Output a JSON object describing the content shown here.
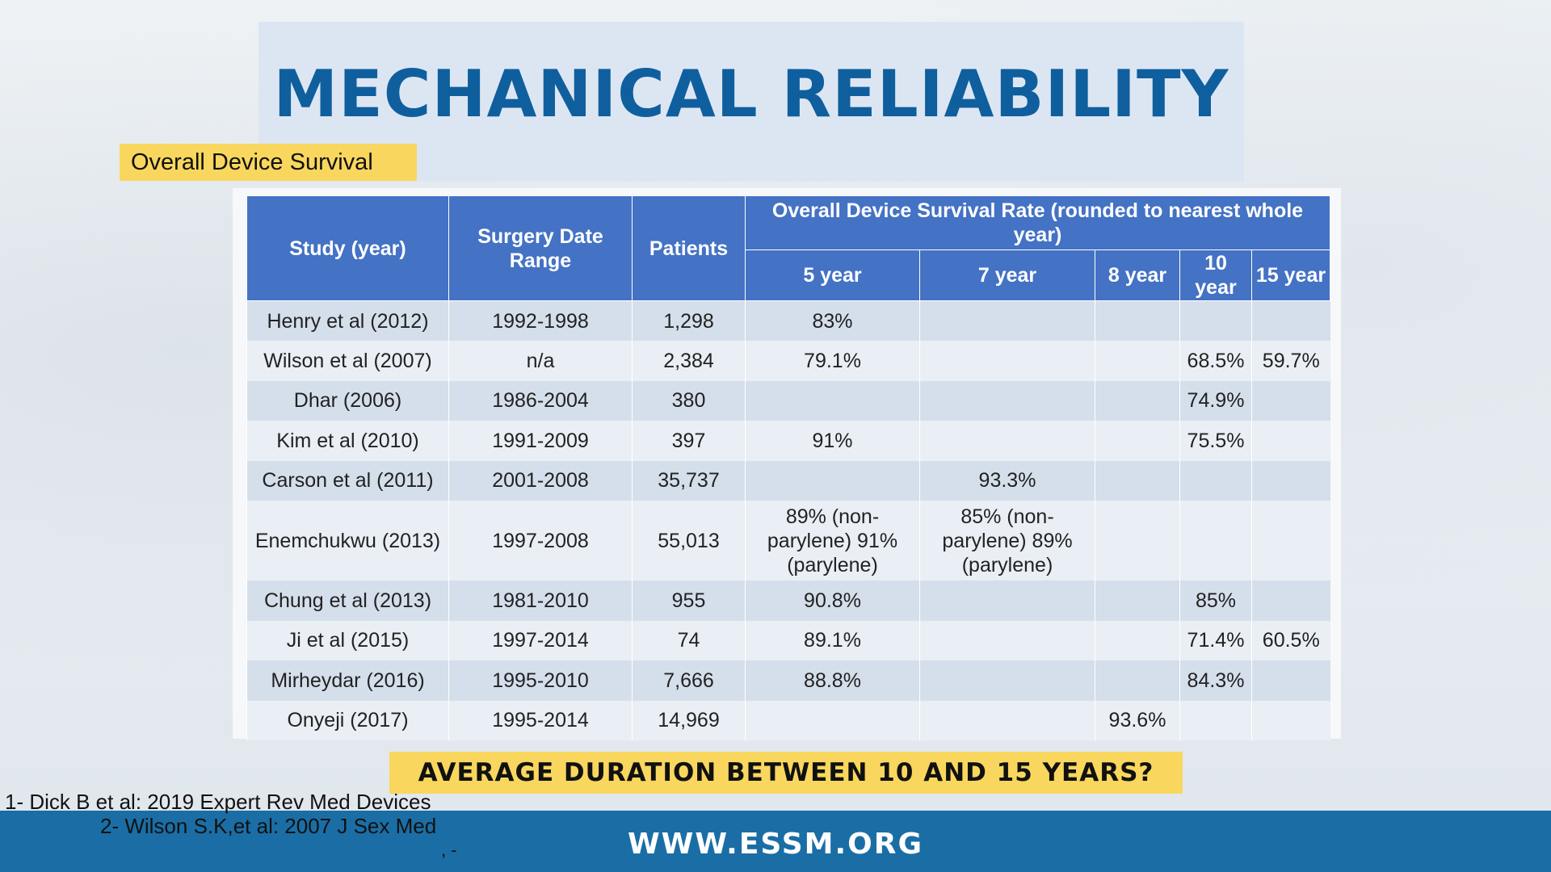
{
  "title": "MECHANICAL RELIABILITY",
  "subtitle": "Overall Device Survival",
  "table": {
    "headers": {
      "study": "Study (year)",
      "date_range": "Surgery Date Range",
      "patients": "Patients",
      "survival_group": "Overall Device Survival Rate (rounded to nearest whole year)",
      "y5": "5 year",
      "y7": "7 year",
      "y8": "8 year",
      "y10": "10 year",
      "y15": "15 year"
    },
    "rows": [
      {
        "study": "Henry et al (2012)",
        "range": "1992-1998",
        "patients": "1,298",
        "y5": "83%",
        "y7": "",
        "y8": "",
        "y10": "",
        "y15": ""
      },
      {
        "study": "Wilson et al (2007)",
        "range": "n/a",
        "patients": "2,384",
        "y5": "79.1%",
        "y7": "",
        "y8": "",
        "y10": "68.5%",
        "y15": "59.7%"
      },
      {
        "study": "Dhar (2006)",
        "range": "1986-2004",
        "patients": "380",
        "y5": "",
        "y7": "",
        "y8": "",
        "y10": "74.9%",
        "y15": ""
      },
      {
        "study": "Kim et al (2010)",
        "range": "1991-2009",
        "patients": "397",
        "y5": "91%",
        "y7": "",
        "y8": "",
        "y10": "75.5%",
        "y15": ""
      },
      {
        "study": "Carson et al (2011)",
        "range": "2001-2008",
        "patients": "35,737",
        "y5": "",
        "y7": "93.3%",
        "y8": "",
        "y10": "",
        "y15": ""
      },
      {
        "study": "Enemchukwu (2013)",
        "range": "1997-2008",
        "patients": "55,013",
        "y5": "89% (non-parylene) 91% (parylene)",
        "y7": "85% (non-parylene) 89% (parylene)",
        "y8": "",
        "y10": "",
        "y15": ""
      },
      {
        "study": "Chung et al (2013)",
        "range": "1981-2010",
        "patients": "955",
        "y5": "90.8%",
        "y7": "",
        "y8": "",
        "y10": "85%",
        "y15": ""
      },
      {
        "study": "Ji et al (2015)",
        "range": "1997-2014",
        "patients": "74",
        "y5": "89.1%",
        "y7": "",
        "y8": "",
        "y10": "71.4%",
        "y15": "60.5%"
      },
      {
        "study": "Mirheydar (2016)",
        "range": "1995-2010",
        "patients": "7,666",
        "y5": "88.8%",
        "y7": "",
        "y8": "",
        "y10": "84.3%",
        "y15": ""
      },
      {
        "study": "Onyeji (2017)",
        "range": "1995-2014",
        "patients": "14,969",
        "y5": "",
        "y7": "",
        "y8": "93.6%",
        "y10": "",
        "y15": ""
      }
    ]
  },
  "question": "AVERAGE DURATION BETWEEN 10 AND 15 YEARS?",
  "references": [
    "1- Dick B et al: 2019 Expert Rev Med Devices",
    "2- Wilson S.K,et al: 2007 J Sex Med",
    ", -"
  ],
  "footer_url": "WWW.ESSM.ORG",
  "colors": {
    "title": "#0f5f9e",
    "header_fill": "#4472c4",
    "highlight": "#f9d75e",
    "footer": "#1a6ea5"
  }
}
